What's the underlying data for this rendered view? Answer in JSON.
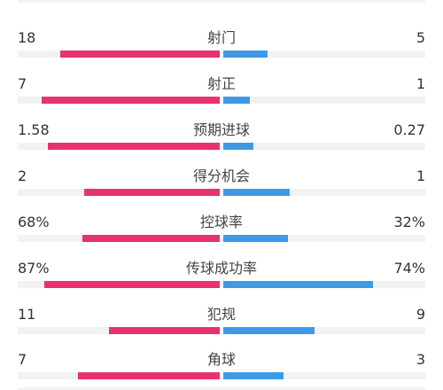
{
  "colors": {
    "home": "#e8326d",
    "away": "#3d9ae6",
    "track": "#f2f2f2"
  },
  "stats": [
    {
      "label": "射门",
      "home": "18",
      "away": "5",
      "home_fill": 0.79,
      "away_fill": 0.22
    },
    {
      "label": "射正",
      "home": "7",
      "away": "1",
      "home_fill": 0.88,
      "away_fill": 0.13
    },
    {
      "label": "预期进球",
      "home": "1.58",
      "away": "0.27",
      "home_fill": 0.85,
      "away_fill": 0.15
    },
    {
      "label": "得分机会",
      "home": "2",
      "away": "1",
      "home_fill": 0.67,
      "away_fill": 0.33
    },
    {
      "label": "控球率",
      "home": "68%",
      "away": "32%",
      "home_fill": 0.68,
      "away_fill": 0.32
    },
    {
      "label": "传球成功率",
      "home": "87%",
      "away": "74%",
      "home_fill": 0.87,
      "away_fill": 0.74
    },
    {
      "label": "犯规",
      "home": "11",
      "away": "9",
      "home_fill": 0.55,
      "away_fill": 0.45
    },
    {
      "label": "角球",
      "home": "7",
      "away": "3",
      "home_fill": 0.7,
      "away_fill": 0.3
    }
  ]
}
